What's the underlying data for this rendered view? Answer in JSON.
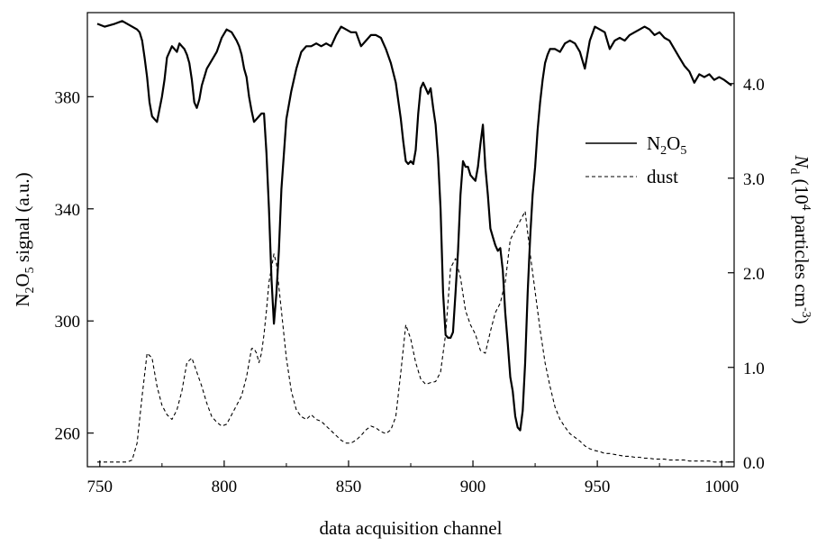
{
  "chart_data": {
    "type": "line",
    "title": "",
    "xlabel": "data acquisition channel",
    "ylabel_left": {
      "main": "N",
      "sub1": "2",
      "mid": "O",
      "sub2": "5",
      "rest": " signal (a.u.)"
    },
    "ylabel_right": {
      "var": "N",
      "var_sub": "d",
      "open": " (10",
      "sup": "4",
      "mid": " particles  cm",
      "sup2": "-3",
      "close": ")"
    },
    "xlim": [
      745,
      1005
    ],
    "ylim_left": [
      248,
      410
    ],
    "ylim_right": [
      -0.05,
      4.75
    ],
    "x_ticks": [
      750,
      800,
      850,
      900,
      950,
      1000
    ],
    "y_left_ticks": [
      260,
      300,
      340,
      380
    ],
    "y_right_ticks": [
      0.0,
      1.0,
      2.0,
      3.0,
      4.0
    ],
    "y_right_tick_labels": [
      "0.0",
      "1.0",
      "2.0",
      "3.0",
      "4.0"
    ],
    "grid": false,
    "legend_position": "right",
    "series": [
      {
        "name": "N2O5",
        "legend_label": {
          "main": "N",
          "sub1": "2",
          "mid": "O",
          "sub2": "5"
        },
        "axis": "left",
        "style": "solid",
        "x": [
          749,
          752,
          756,
          759,
          761,
          763,
          765,
          766,
          767,
          768,
          769,
          770,
          771,
          773,
          775,
          776,
          777,
          779,
          780,
          781,
          782,
          783,
          784,
          785,
          786,
          787,
          788,
          789,
          790,
          791,
          793,
          795,
          797,
          799,
          801,
          803,
          805,
          806,
          807,
          808,
          809,
          810,
          811,
          812,
          813,
          814,
          815,
          816,
          817,
          818,
          819,
          820,
          821,
          822,
          823,
          825,
          827,
          829,
          831,
          833,
          835,
          837,
          839,
          841,
          843,
          845,
          847,
          849,
          851,
          853,
          855,
          857,
          859,
          861,
          863,
          865,
          867,
          869,
          871,
          872,
          873,
          874,
          875,
          876,
          877,
          878,
          879,
          880,
          881,
          882,
          883,
          884,
          885,
          886,
          887,
          888,
          889,
          890,
          891,
          892,
          893,
          894,
          895,
          896,
          897,
          898,
          899,
          900,
          901,
          902,
          903,
          904,
          905,
          906,
          907,
          908,
          909,
          910,
          911,
          912,
          913,
          914,
          915,
          916,
          917,
          918,
          919,
          920,
          921,
          922,
          923,
          924,
          925,
          926,
          927,
          928,
          929,
          930,
          931,
          933,
          935,
          937,
          939,
          941,
          943,
          945,
          947,
          949,
          951,
          953,
          955,
          957,
          959,
          961,
          963,
          965,
          967,
          969,
          971,
          973,
          975,
          977,
          979,
          981,
          983,
          985,
          987,
          989,
          991,
          993,
          995,
          997,
          999,
          1001,
          1004
        ],
        "y": [
          406,
          405,
          406,
          407,
          406,
          405,
          404,
          403,
          400,
          394,
          387,
          378,
          373,
          371,
          380,
          386,
          394,
          398,
          397,
          396,
          399,
          398,
          397,
          395,
          392,
          386,
          378,
          376,
          379,
          384,
          390,
          393,
          396,
          401,
          404,
          403,
          400,
          398,
          395,
          390,
          387,
          380,
          375,
          371,
          372,
          373,
          374,
          374,
          360,
          340,
          315,
          299,
          310,
          325,
          347,
          372,
          382,
          390,
          396,
          398,
          398,
          399,
          398,
          399,
          398,
          402,
          405,
          404,
          403,
          403,
          398,
          400,
          402,
          402,
          401,
          397,
          392,
          385,
          372,
          364,
          357,
          356,
          357,
          356,
          361,
          374,
          383,
          385,
          383,
          381,
          383,
          376,
          370,
          358,
          340,
          310,
          295,
          294,
          294,
          296,
          310,
          325,
          345,
          357,
          355,
          355,
          352,
          351,
          350,
          355,
          363,
          370,
          355,
          345,
          333,
          330,
          327,
          325,
          326,
          318,
          303,
          292,
          280,
          275,
          266,
          262,
          261,
          268,
          285,
          310,
          330,
          345,
          355,
          368,
          378,
          386,
          392,
          395,
          397,
          397,
          396,
          399,
          400,
          399,
          396,
          390,
          400,
          405,
          404,
          403,
          397,
          400,
          401,
          400,
          402,
          403,
          404,
          405,
          404,
          402,
          403,
          401,
          400,
          397,
          394,
          391,
          389,
          385,
          388,
          387,
          388,
          386,
          387,
          386,
          384
        ],
        "color": "#000000"
      },
      {
        "name": "dust",
        "legend_label": {
          "main": "dust"
        },
        "axis": "right",
        "style": "dashed",
        "x": [
          749,
          752,
          756,
          759,
          761,
          763,
          765,
          767,
          769,
          771,
          773,
          775,
          777,
          779,
          781,
          783,
          785,
          787,
          789,
          791,
          793,
          795,
          797,
          799,
          801,
          803,
          805,
          807,
          809,
          811,
          812,
          813,
          814,
          815,
          816,
          817,
          818,
          819,
          820,
          821,
          822,
          823,
          825,
          827,
          829,
          831,
          833,
          835,
          837,
          839,
          841,
          843,
          845,
          847,
          849,
          851,
          853,
          855,
          857,
          859,
          861,
          863,
          865,
          867,
          869,
          871,
          873,
          875,
          877,
          879,
          881,
          883,
          885,
          887,
          889,
          891,
          893,
          895,
          897,
          899,
          901,
          903,
          905,
          907,
          909,
          911,
          913,
          915,
          917,
          919,
          921,
          923,
          925,
          927,
          929,
          931,
          933,
          935,
          937,
          939,
          941,
          943,
          945,
          947,
          949,
          951,
          953,
          955,
          957,
          959,
          961,
          963,
          965,
          967,
          969,
          971,
          973,
          975,
          977,
          979,
          981,
          983,
          985,
          987,
          989,
          991,
          993,
          995,
          997,
          999,
          1001,
          1004
        ],
        "y": [
          0.0,
          0.0,
          0.0,
          0.0,
          0.0,
          0.02,
          0.2,
          0.7,
          1.15,
          1.1,
          0.8,
          0.6,
          0.5,
          0.45,
          0.55,
          0.75,
          1.05,
          1.1,
          0.95,
          0.8,
          0.62,
          0.48,
          0.42,
          0.38,
          0.4,
          0.5,
          0.6,
          0.7,
          0.9,
          1.2,
          1.2,
          1.15,
          1.05,
          1.15,
          1.35,
          1.6,
          1.9,
          2.05,
          2.2,
          2.1,
          1.85,
          1.6,
          1.1,
          0.75,
          0.55,
          0.48,
          0.45,
          0.5,
          0.45,
          0.43,
          0.38,
          0.33,
          0.28,
          0.23,
          0.2,
          0.2,
          0.23,
          0.28,
          0.34,
          0.38,
          0.36,
          0.32,
          0.3,
          0.34,
          0.48,
          0.95,
          1.45,
          1.3,
          1.05,
          0.88,
          0.82,
          0.84,
          0.85,
          0.95,
          1.35,
          2.05,
          2.15,
          1.95,
          1.6,
          1.45,
          1.35,
          1.18,
          1.15,
          1.38,
          1.58,
          1.68,
          1.9,
          2.35,
          2.45,
          2.55,
          2.65,
          2.2,
          1.8,
          1.4,
          1.05,
          0.8,
          0.58,
          0.45,
          0.37,
          0.3,
          0.26,
          0.22,
          0.17,
          0.14,
          0.12,
          0.11,
          0.09,
          0.09,
          0.08,
          0.07,
          0.06,
          0.06,
          0.05,
          0.05,
          0.04,
          0.04,
          0.03,
          0.03,
          0.03,
          0.02,
          0.02,
          0.02,
          0.02,
          0.01,
          0.01,
          0.01,
          0.01,
          0.01,
          0.0,
          0.0,
          0.0,
          0.0
        ],
        "color": "#000000"
      }
    ]
  }
}
